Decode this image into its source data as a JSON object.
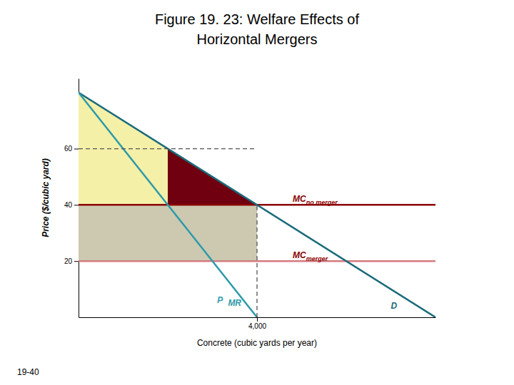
{
  "chart_data": {
    "type": "line",
    "title": "Figure 19. 23: Welfare Effects of",
    "subtitle": "Horizontal Mergers",
    "xlabel": "Concrete (cubic yards per year)",
    "ylabel": "Price ($/cubic yard)",
    "xlim": [
      0,
      8000
    ],
    "ylim": [
      0,
      85
    ],
    "xticks": [
      {
        "value": 4000,
        "label": "4,000"
      }
    ],
    "yticks": [
      20,
      40,
      60
    ],
    "grid": false,
    "series": [
      {
        "type": "area",
        "color": "#f5f0a8",
        "x": [
          0,
          0,
          4000
        ],
        "values": [
          80,
          40,
          40
        ]
      },
      {
        "type": "area",
        "color": "#ccc9b0",
        "x": [
          0,
          0,
          4000,
          4000
        ],
        "values": [
          40,
          20,
          20,
          40
        ]
      },
      {
        "type": "area",
        "color": "#700010",
        "x": [
          2000,
          2000,
          4000
        ],
        "values": [
          40,
          60,
          40
        ]
      },
      {
        "type": "line",
        "color": "#8B0000",
        "x": [
          0,
          8000
        ],
        "values": [
          40,
          40
        ]
      },
      {
        "type": "line",
        "color": "#d47a80",
        "x": [
          0,
          8000
        ],
        "values": [
          20,
          20
        ]
      },
      {
        "type": "line",
        "color": "#1a6b7a",
        "x": [
          0,
          8000
        ],
        "values": [
          80,
          0
        ]
      },
      {
        "type": "line",
        "color": "#2e9aaa",
        "x": [
          0,
          4000
        ],
        "values": [
          80,
          0
        ]
      },
      {
        "type": "line",
        "color": "#555555",
        "line_style": "dashed",
        "x": [
          4000,
          4000
        ],
        "values": [
          0,
          40
        ]
      },
      {
        "type": "line",
        "color": "#555555",
        "line_style": "dashed",
        "x": [
          0,
          4000
        ],
        "values": [
          60,
          60
        ]
      }
    ],
    "annotations": [
      {
        "text": "P",
        "x": 3300,
        "y": 5,
        "color": "#2e9aaa"
      },
      {
        "text": "MR",
        "x": 3350,
        "y": 4,
        "color": "#2e9aaa"
      },
      {
        "text": "D",
        "x": 7000,
        "y": 3,
        "color": "#1a6b7a"
      },
      {
        "text": "MC",
        "sub": "no merger",
        "x": 4800,
        "y": 41,
        "color": "#8B0000"
      },
      {
        "text": "MC",
        "sub": "merger",
        "x": 4800,
        "y": 21,
        "color": "#8B0000"
      },
      {
        "text": "19-40"
      }
    ]
  }
}
